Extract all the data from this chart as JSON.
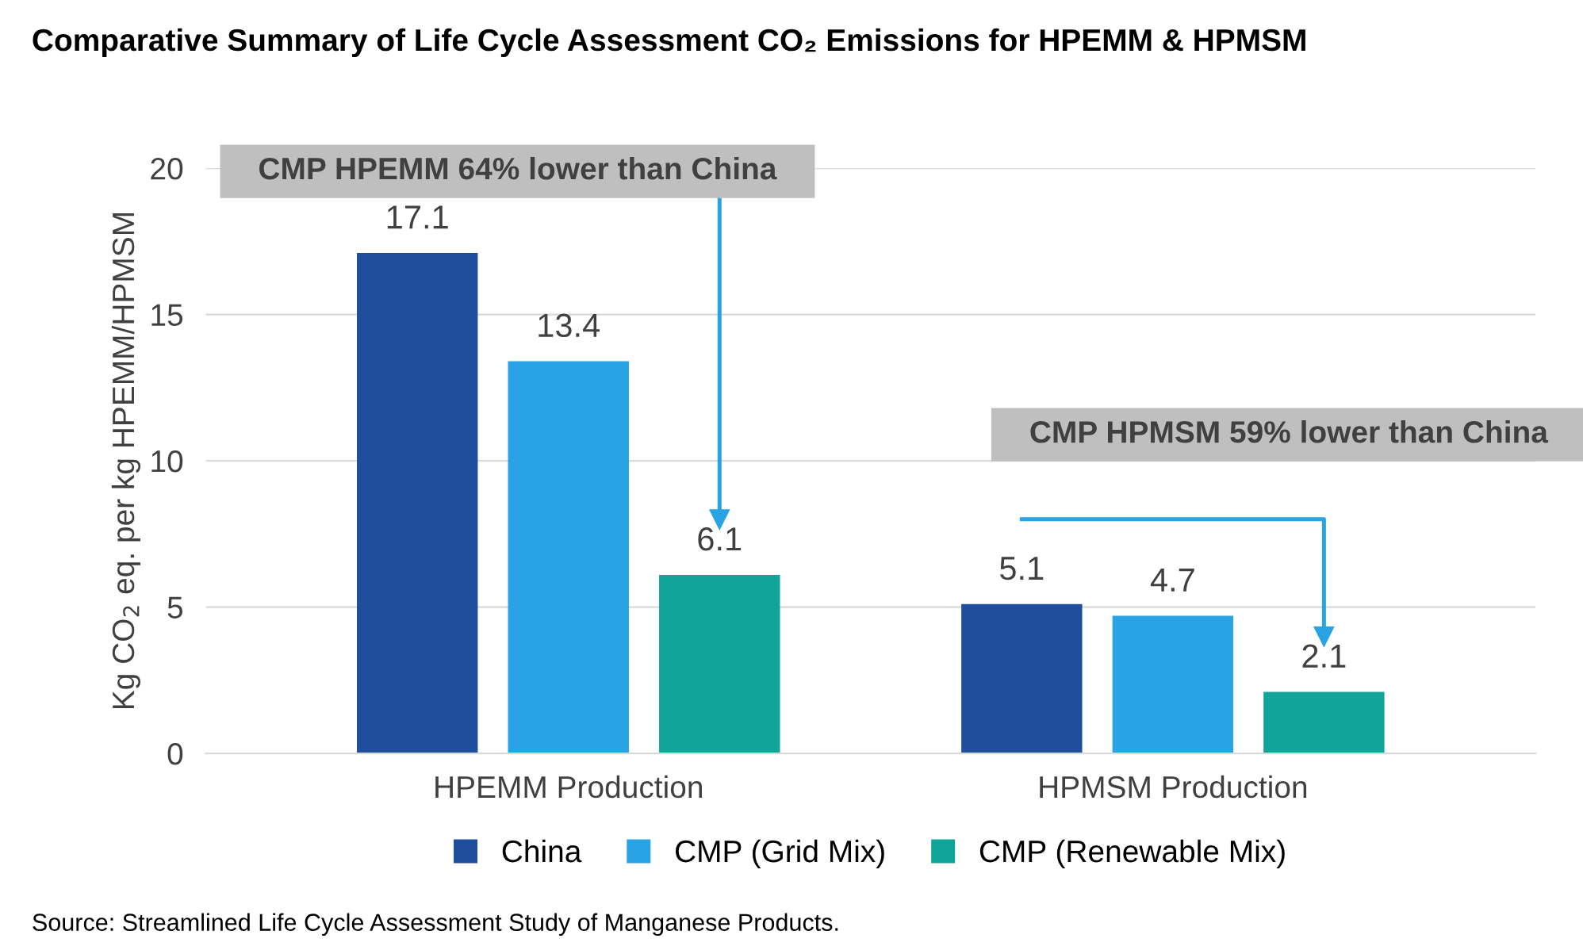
{
  "chart_data": {
    "type": "bar",
    "title": "Comparative Summary of Life Cycle Assessment CO₂ Emissions for HPEMM & HPMSM",
    "ylabel": "Kg CO$_{2}$ eq. per kg HPEMM/HPMSM",
    "categories": [
      "HPEMM Production",
      "HPMSM Production"
    ],
    "series": [
      {
        "name": "China",
        "color": "#1f4e9c",
        "values": [
          17.1,
          5.1
        ]
      },
      {
        "name": "CMP (Grid Mix)",
        "color": "#29a3e3",
        "values": [
          13.4,
          4.7
        ]
      },
      {
        "name": "CMP (Renewable Mix)",
        "color": "#11a59a",
        "values": [
          6.1,
          2.1
        ]
      }
    ],
    "ylim": [
      0,
      20
    ],
    "yticks": [
      0,
      5,
      10,
      15,
      20
    ],
    "grid": "y",
    "legend": "bottom",
    "data_labels": true,
    "annotations": [
      "CMP HPEMM 64% lower than China",
      "CMP HPMSM 59% lower than China",
      "Source: Streamlined Life Cycle Assessment Study of Manganese Products."
    ]
  }
}
